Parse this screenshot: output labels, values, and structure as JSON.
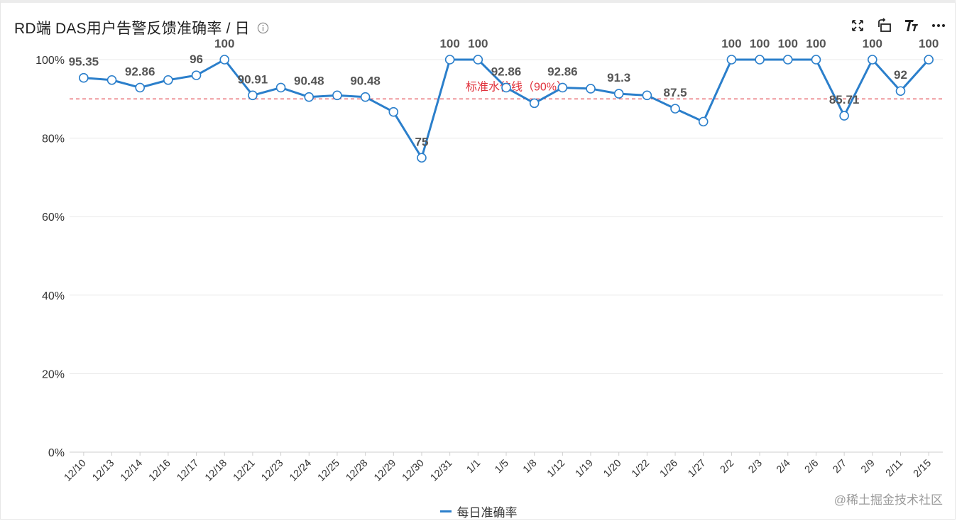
{
  "header": {
    "title": "RD端 DAS用户告警反馈准确率 / 日",
    "icons": [
      "info-icon",
      "fullscreen-icon",
      "rotate-icon",
      "font-toggle-icon",
      "more-icon"
    ]
  },
  "brand_watermark": "@稀土掘金技术社区",
  "chart_data": {
    "type": "line",
    "categories": [
      "12/10",
      "12/13",
      "12/14",
      "12/16",
      "12/17",
      "12/18",
      "12/21",
      "12/23",
      "12/24",
      "12/25",
      "12/28",
      "12/29",
      "12/30",
      "12/31",
      "1/1",
      "1/5",
      "1/8",
      "1/12",
      "1/19",
      "1/20",
      "1/22",
      "1/26",
      "1/27",
      "2/2",
      "2/3",
      "2/4",
      "2/6",
      "2/7",
      "2/9",
      "2/11",
      "2/15"
    ],
    "series": [
      {
        "name": "每日准确率",
        "values": [
          95.35,
          94.8,
          92.86,
          94.8,
          96,
          100,
          90.91,
          92.86,
          90.48,
          90.9,
          90.48,
          86.67,
          75,
          100,
          100,
          92.86,
          88.9,
          92.86,
          92.6,
          91.3,
          90.9,
          87.5,
          84.2,
          100,
          100,
          100,
          100,
          85.71,
          100,
          92,
          100
        ],
        "labels": [
          "95.35",
          "",
          "92.86",
          "",
          "96",
          "100",
          "90.91",
          "",
          "90.48",
          "",
          "90.48",
          "",
          "75",
          "100",
          "100",
          "92.86",
          "",
          "92.86",
          "",
          "91.3",
          "",
          "87.5",
          "",
          "100",
          "100",
          "100",
          "100",
          "85.71",
          "100",
          "92",
          "100"
        ],
        "color": "#2b7fcb"
      }
    ],
    "yticks": [
      "0%",
      "20%",
      "40%",
      "60%",
      "80%",
      "100%"
    ],
    "ylim": [
      0,
      100
    ],
    "reference_line": {
      "value": 90,
      "label": "标准水位线（90%）",
      "color": "#e0323c"
    },
    "grid": true,
    "legend": "bottom-center"
  }
}
